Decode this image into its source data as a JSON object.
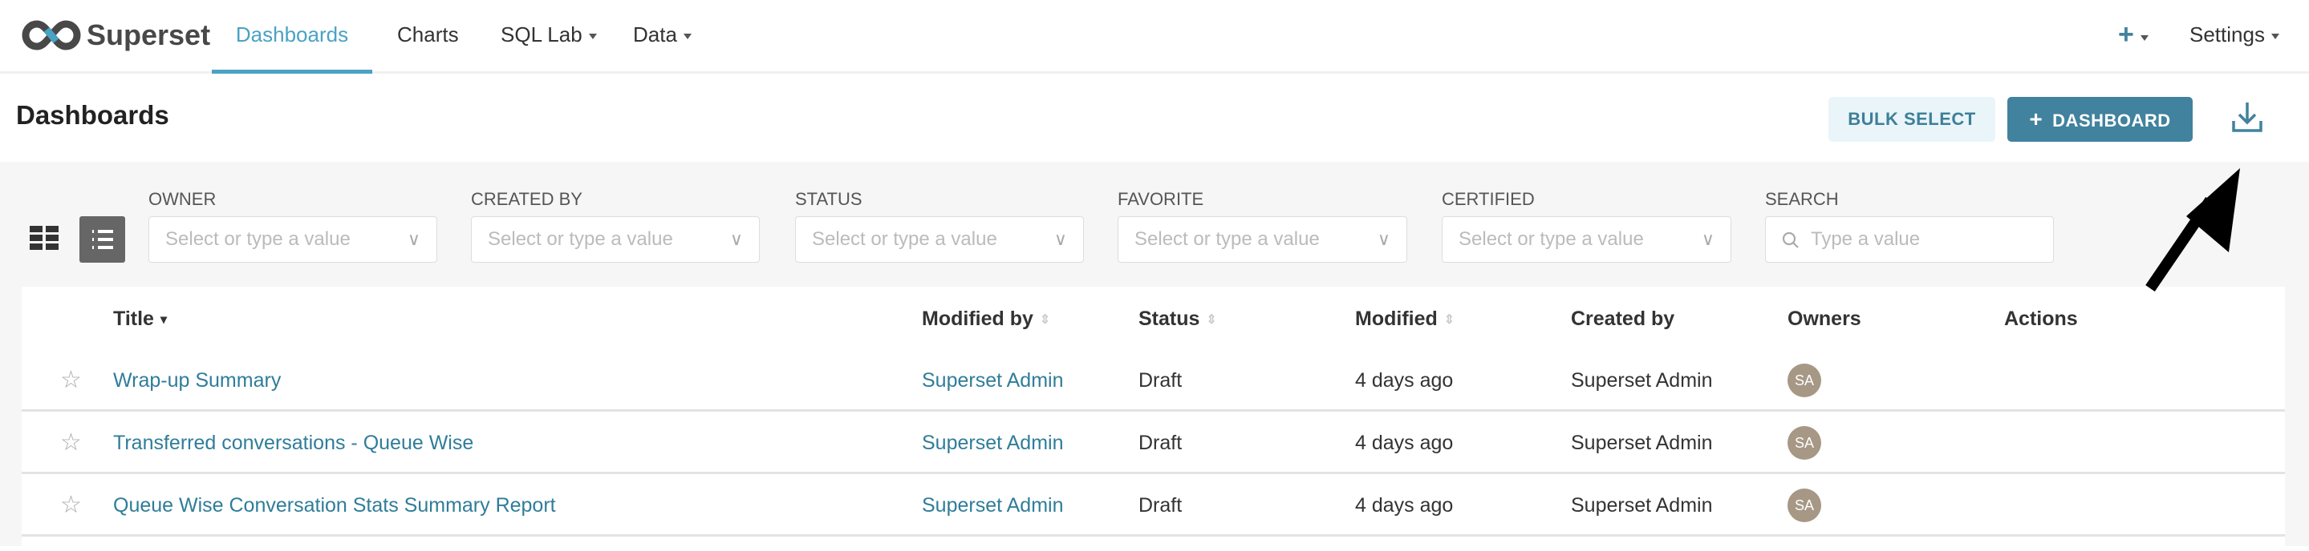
{
  "nav": {
    "brand": "Superset",
    "items": [
      {
        "label": "Dashboards",
        "active": true
      },
      {
        "label": "Charts"
      },
      {
        "label": "SQL Lab",
        "dropdown": true
      },
      {
        "label": "Data",
        "dropdown": true
      }
    ],
    "plus_icon": "plus-icon",
    "settings": "Settings"
  },
  "header": {
    "title": "Dashboards",
    "bulk_select": "BULK SELECT",
    "add_dashboard": "DASHBOARD",
    "download_icon": "download-icon"
  },
  "filters": [
    {
      "label": "OWNER",
      "placeholder": "Select or type a value"
    },
    {
      "label": "CREATED BY",
      "placeholder": "Select or type a value"
    },
    {
      "label": "STATUS",
      "placeholder": "Select or type a value"
    },
    {
      "label": "FAVORITE",
      "placeholder": "Select or type a value"
    },
    {
      "label": "CERTIFIED",
      "placeholder": "Select or type a value"
    },
    {
      "label": "SEARCH",
      "placeholder": "Type a value"
    }
  ],
  "view_mode": "list",
  "table": {
    "columns": [
      "Title",
      "Modified by",
      "Status",
      "Modified",
      "Created by",
      "Owners",
      "Actions"
    ],
    "rows": [
      {
        "title": "Wrap-up Summary",
        "modified_by": "Superset Admin",
        "status": "Draft",
        "modified": "4 days ago",
        "created_by": "Superset Admin",
        "owner": "SA"
      },
      {
        "title": "Transferred conversations - Queue Wise",
        "modified_by": "Superset Admin",
        "status": "Draft",
        "modified": "4 days ago",
        "created_by": "Superset Admin",
        "owner": "SA"
      },
      {
        "title": "Queue Wise Conversation Stats Summary Report",
        "modified_by": "Superset Admin",
        "status": "Draft",
        "modified": "4 days ago",
        "created_by": "Superset Admin",
        "owner": "SA"
      }
    ]
  },
  "colors": {
    "accent": "#41829e",
    "nav_active": "#4aa2c4",
    "avatar": "#a69885",
    "annotation_arrow": "#000000"
  }
}
